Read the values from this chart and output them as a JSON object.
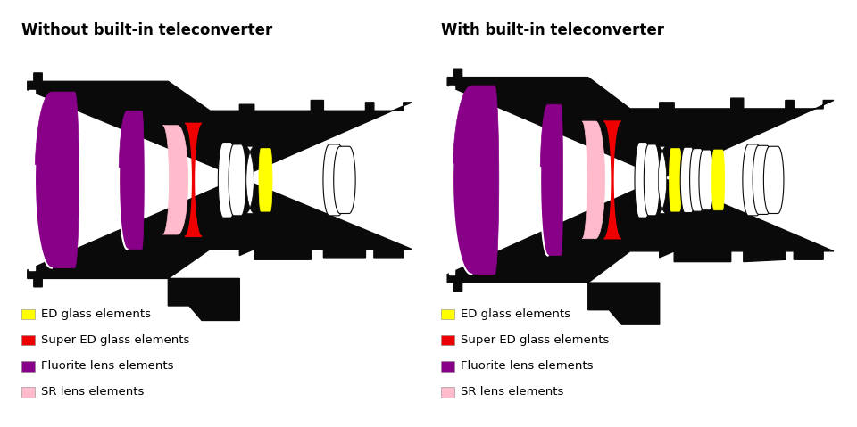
{
  "title_left": "Without built-in teleconverter",
  "title_right": "With built-in teleconverter",
  "legend_items": [
    {
      "label": "ED glass elements",
      "color": "#FFFF00"
    },
    {
      "label": "Super ED glass elements",
      "color": "#EE0000"
    },
    {
      "label": "Fluorite lens elements",
      "color": "#880088"
    },
    {
      "label": "SR lens elements",
      "color": "#FFBBCC"
    }
  ],
  "bg_color": "#FFFFFF",
  "black": "#0A0A0A",
  "white": "#FFFFFF",
  "title_fontsize": 12,
  "legend_fontsize": 9.5
}
